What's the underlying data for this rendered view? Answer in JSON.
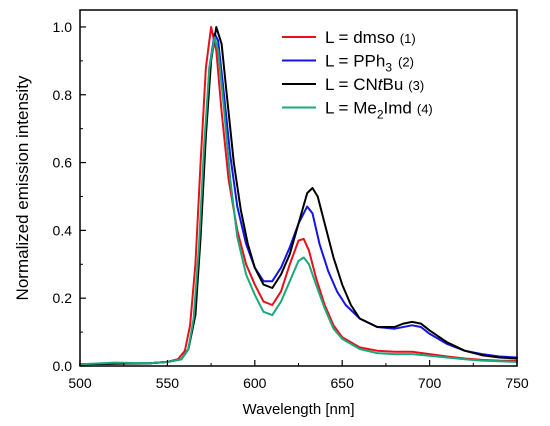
{
  "chart_data": {
    "type": "line",
    "xlabel": "Wavelength [nm]",
    "ylabel": "Normalized emission intensity",
    "xlim": [
      500,
      750
    ],
    "ylim": [
      0,
      1.05
    ],
    "x_ticks": [
      "500",
      "550",
      "600",
      "650",
      "700",
      "750"
    ],
    "y_ticks": [
      "0.0",
      "0.2",
      "0.4",
      "0.6",
      "0.8",
      "1.0"
    ],
    "grid": false,
    "legend_position": "top-right",
    "series": [
      {
        "legend_prefix": "L = ",
        "legend_main": "dmso",
        "legend_sub": "",
        "legend_suffix": "",
        "legend_num": "(1)",
        "color": "#e8101a",
        "points": [
          [
            500,
            0.005
          ],
          [
            520,
            0.007
          ],
          [
            540,
            0.008
          ],
          [
            550,
            0.012
          ],
          [
            556,
            0.02
          ],
          [
            560,
            0.045
          ],
          [
            563,
            0.12
          ],
          [
            566,
            0.3
          ],
          [
            569,
            0.6
          ],
          [
            572,
            0.88
          ],
          [
            575,
            1.0
          ],
          [
            578,
            0.93
          ],
          [
            581,
            0.75
          ],
          [
            585,
            0.55
          ],
          [
            590,
            0.4
          ],
          [
            595,
            0.3
          ],
          [
            600,
            0.24
          ],
          [
            605,
            0.19
          ],
          [
            610,
            0.18
          ],
          [
            615,
            0.22
          ],
          [
            620,
            0.3
          ],
          [
            625,
            0.37
          ],
          [
            628,
            0.375
          ],
          [
            631,
            0.34
          ],
          [
            635,
            0.26
          ],
          [
            640,
            0.18
          ],
          [
            645,
            0.12
          ],
          [
            650,
            0.085
          ],
          [
            660,
            0.055
          ],
          [
            670,
            0.045
          ],
          [
            680,
            0.042
          ],
          [
            690,
            0.042
          ],
          [
            700,
            0.035
          ],
          [
            710,
            0.028
          ],
          [
            720,
            0.022
          ],
          [
            730,
            0.018
          ],
          [
            740,
            0.016
          ],
          [
            750,
            0.015
          ]
        ]
      },
      {
        "legend_prefix": "L = ",
        "legend_main": "PPh",
        "legend_sub": "3",
        "legend_suffix": "",
        "legend_num": "(2)",
        "color": "#1414e6",
        "points": [
          [
            500,
            0.005
          ],
          [
            520,
            0.007
          ],
          [
            540,
            0.008
          ],
          [
            550,
            0.012
          ],
          [
            558,
            0.02
          ],
          [
            562,
            0.05
          ],
          [
            565,
            0.13
          ],
          [
            568,
            0.33
          ],
          [
            571,
            0.62
          ],
          [
            574,
            0.88
          ],
          [
            577,
            0.98
          ],
          [
            579,
            0.96
          ],
          [
            582,
            0.82
          ],
          [
            586,
            0.62
          ],
          [
            590,
            0.47
          ],
          [
            595,
            0.36
          ],
          [
            600,
            0.29
          ],
          [
            605,
            0.25
          ],
          [
            610,
            0.25
          ],
          [
            615,
            0.29
          ],
          [
            620,
            0.35
          ],
          [
            625,
            0.42
          ],
          [
            630,
            0.47
          ],
          [
            633,
            0.45
          ],
          [
            637,
            0.36
          ],
          [
            642,
            0.28
          ],
          [
            647,
            0.22
          ],
          [
            652,
            0.18
          ],
          [
            660,
            0.14
          ],
          [
            670,
            0.115
          ],
          [
            680,
            0.11
          ],
          [
            690,
            0.12
          ],
          [
            695,
            0.115
          ],
          [
            700,
            0.095
          ],
          [
            710,
            0.065
          ],
          [
            720,
            0.045
          ],
          [
            730,
            0.035
          ],
          [
            740,
            0.028
          ],
          [
            750,
            0.025
          ]
        ]
      },
      {
        "legend_prefix": "L = CN",
        "legend_main": "t",
        "legend_sub": "",
        "legend_suffix": "Bu",
        "legend_num": "(3)",
        "color": "#000000",
        "points": [
          [
            500,
            0.005
          ],
          [
            520,
            0.007
          ],
          [
            540,
            0.008
          ],
          [
            550,
            0.012
          ],
          [
            558,
            0.02
          ],
          [
            562,
            0.05
          ],
          [
            566,
            0.15
          ],
          [
            569,
            0.38
          ],
          [
            572,
            0.68
          ],
          [
            575,
            0.9
          ],
          [
            578,
            1.0
          ],
          [
            581,
            0.95
          ],
          [
            584,
            0.8
          ],
          [
            588,
            0.6
          ],
          [
            592,
            0.46
          ],
          [
            596,
            0.36
          ],
          [
            600,
            0.29
          ],
          [
            605,
            0.24
          ],
          [
            610,
            0.23
          ],
          [
            615,
            0.27
          ],
          [
            620,
            0.33
          ],
          [
            625,
            0.42
          ],
          [
            630,
            0.51
          ],
          [
            633,
            0.525
          ],
          [
            636,
            0.5
          ],
          [
            640,
            0.42
          ],
          [
            645,
            0.32
          ],
          [
            650,
            0.24
          ],
          [
            655,
            0.18
          ],
          [
            660,
            0.14
          ],
          [
            670,
            0.115
          ],
          [
            680,
            0.115
          ],
          [
            685,
            0.125
          ],
          [
            690,
            0.13
          ],
          [
            695,
            0.125
          ],
          [
            700,
            0.105
          ],
          [
            710,
            0.07
          ],
          [
            720,
            0.045
          ],
          [
            730,
            0.032
          ],
          [
            740,
            0.025
          ],
          [
            750,
            0.022
          ]
        ]
      },
      {
        "legend_prefix": "L = Me",
        "legend_main": "2",
        "legend_sub": "",
        "legend_suffix": "Imd",
        "legend_num": "(4)",
        "color": "#1aaa78",
        "points": [
          [
            500,
            0.005
          ],
          [
            520,
            0.01
          ],
          [
            540,
            0.008
          ],
          [
            550,
            0.012
          ],
          [
            558,
            0.02
          ],
          [
            562,
            0.05
          ],
          [
            565,
            0.14
          ],
          [
            568,
            0.35
          ],
          [
            571,
            0.65
          ],
          [
            574,
            0.88
          ],
          [
            577,
            0.97
          ],
          [
            579,
            0.93
          ],
          [
            582,
            0.78
          ],
          [
            586,
            0.55
          ],
          [
            590,
            0.38
          ],
          [
            595,
            0.27
          ],
          [
            600,
            0.21
          ],
          [
            605,
            0.16
          ],
          [
            610,
            0.15
          ],
          [
            615,
            0.19
          ],
          [
            620,
            0.25
          ],
          [
            625,
            0.31
          ],
          [
            628,
            0.32
          ],
          [
            631,
            0.3
          ],
          [
            635,
            0.24
          ],
          [
            640,
            0.17
          ],
          [
            645,
            0.11
          ],
          [
            650,
            0.08
          ],
          [
            660,
            0.05
          ],
          [
            670,
            0.038
          ],
          [
            680,
            0.035
          ],
          [
            690,
            0.035
          ],
          [
            700,
            0.03
          ],
          [
            710,
            0.025
          ],
          [
            720,
            0.02
          ],
          [
            730,
            0.016
          ],
          [
            740,
            0.014
          ],
          [
            750,
            0.012
          ]
        ]
      }
    ]
  }
}
